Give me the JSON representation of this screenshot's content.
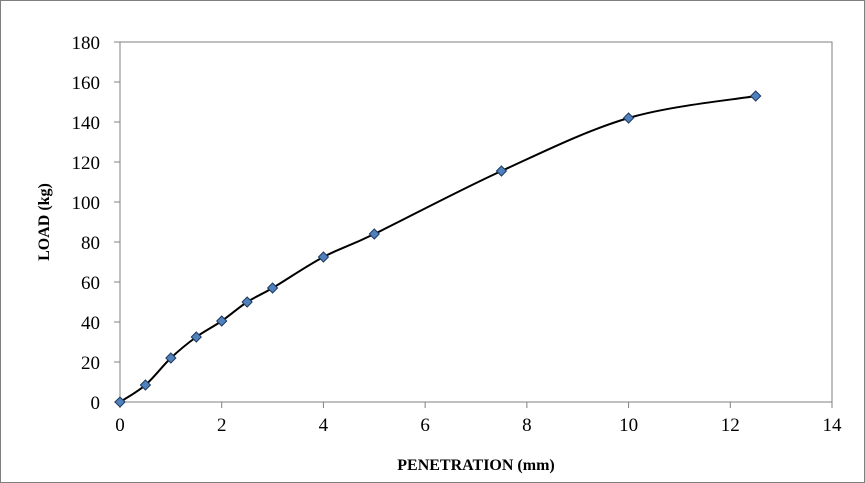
{
  "chart_data": {
    "type": "scatter",
    "title": "",
    "xlabel": "PENETRATION (mm)",
    "ylabel": "LOAD (kg)",
    "xlim": [
      0,
      14
    ],
    "ylim": [
      0,
      180
    ],
    "x_ticks": [
      0,
      2,
      4,
      6,
      8,
      10,
      12,
      14
    ],
    "y_ticks": [
      0,
      20,
      40,
      60,
      80,
      100,
      120,
      140,
      160,
      180
    ],
    "grid": false,
    "legend": "none",
    "line": "smooth",
    "marker": "diamond",
    "colors": {
      "marker_fill": "#4f81bd",
      "marker_stroke": "#1f3a60",
      "line": "#000000",
      "plot_border": "#7f7f7f",
      "axis": "#808080"
    },
    "series": [
      {
        "x": [
          0,
          0.5,
          1,
          1.5,
          2,
          2.5,
          3,
          4,
          5,
          7.5,
          10,
          12.5
        ],
        "y": [
          0,
          8.5,
          22,
          32.5,
          40.5,
          50,
          57,
          72.5,
          84,
          115.5,
          142,
          153
        ]
      }
    ]
  }
}
